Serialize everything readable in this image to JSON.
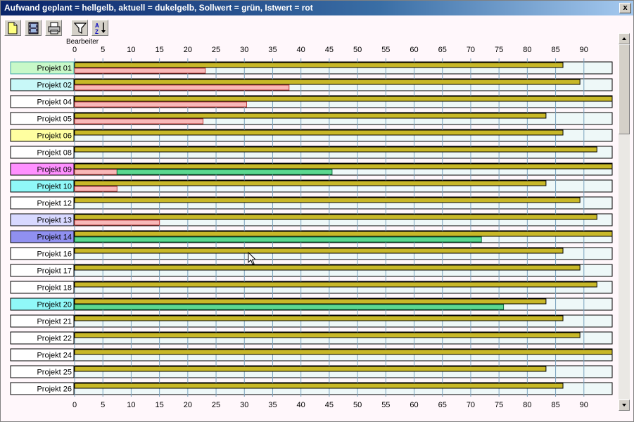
{
  "window": {
    "title": "Aufwand geplant = hellgelb, aktuell = dukelgelb, Sollwert = grün, Istwert = rot",
    "close_label": "x"
  },
  "toolbar": {
    "buttons": [
      {
        "name": "new-document-button",
        "icon": "new-document-icon"
      },
      {
        "name": "film-button",
        "icon": "film-icon"
      },
      {
        "name": "print-button",
        "icon": "printer-icon"
      },
      {
        "name": "filter-button",
        "icon": "filter-icon"
      },
      {
        "name": "sort-button",
        "icon": "sort-az-icon"
      }
    ]
  },
  "colors": {
    "background": "#fff7fb",
    "row_track": "#eef8f8",
    "aktuell": "#c8b828",
    "sollwert": "#5cd890",
    "istwert": "#f8b8b8",
    "grid": "#7aa2bd"
  },
  "chart_data": {
    "type": "bar",
    "orientation": "horizontal",
    "xlabel": "Bearbeiter",
    "xlim": [
      0,
      95
    ],
    "x_ticks": [
      0,
      5,
      10,
      15,
      20,
      25,
      30,
      35,
      40,
      45,
      50,
      55,
      60,
      65,
      70,
      75,
      80,
      85,
      90
    ],
    "grid": true,
    "categories": [
      "Projekt 01",
      "Projekt 02",
      "Projekt 04",
      "Projekt 05",
      "Projekt 06",
      "Projekt 08",
      "Projekt 09",
      "Projekt 10",
      "Projekt 12",
      "Projekt 13",
      "Projekt 14",
      "Projekt 16",
      "Projekt 17",
      "Projekt 18",
      "Projekt 20",
      "Projekt 21",
      "Projekt 22",
      "Projekt 24",
      "Projekt 25",
      "Projekt 26"
    ],
    "label_colors": [
      "#c8f8c8",
      "#c8f8f8",
      "#ffffff",
      "#ffffff",
      "#ffffa0",
      "#ffffff",
      "#ff90ff",
      "#90f8f8",
      "#ffffff",
      "#d8d8ff",
      "#9090f0",
      "#ffffff",
      "#ffffff",
      "#ffffff",
      "#90f8f8",
      "#ffffff",
      "#ffffff",
      "#ffffff",
      "#ffffff",
      "#ffffff"
    ],
    "selected_row": "Projekt 01",
    "series": [
      {
        "key": "aktuell",
        "values": [
          86.3,
          89.3,
          95,
          83.3,
          86.3,
          92.3,
          95,
          83.3,
          89.3,
          92.3,
          95,
          86.3,
          89.3,
          92.3,
          83.3,
          86.3,
          89.3,
          95,
          83.3,
          86.3
        ]
      },
      {
        "key": "sollwert",
        "values": [
          0,
          0,
          0,
          0,
          0,
          0,
          45.5,
          0,
          0,
          0,
          71.9,
          0,
          0,
          0,
          75.8,
          0,
          0,
          0,
          0,
          0
        ]
      },
      {
        "key": "istwert",
        "values": [
          23.1,
          37.9,
          30.4,
          22.7,
          0,
          0,
          7.5,
          7.5,
          0,
          15,
          0,
          0,
          0,
          0,
          0,
          0,
          0,
          0,
          0,
          0
        ]
      }
    ]
  }
}
